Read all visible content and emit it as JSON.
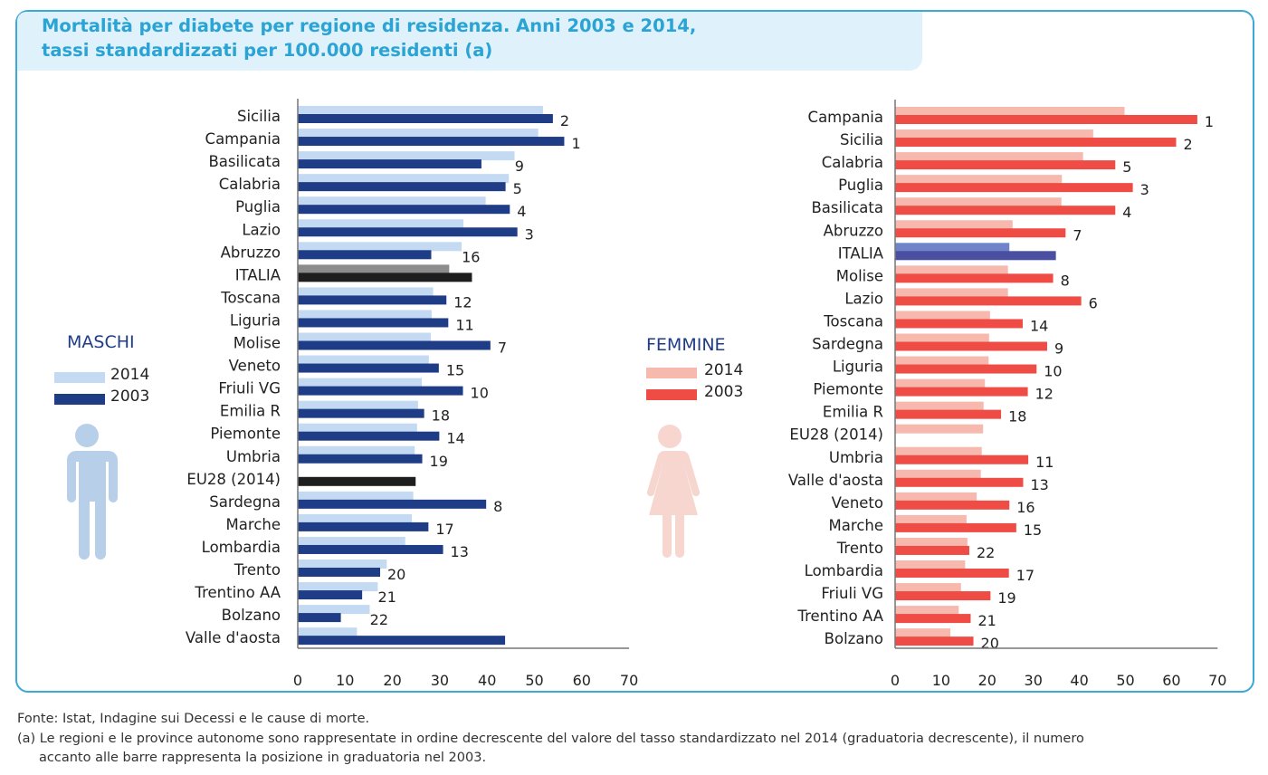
{
  "title": {
    "line1": "Mortalità per diabete per regione di residenza. Anni 2003 e 2014,",
    "line2": "tassi standardizzati per 100.000 residenti (a)"
  },
  "colors": {
    "frame": "#3da9d6",
    "title_text": "#2aa3d5",
    "title_bg": "#dff1fa",
    "male_2014": "#c3daf2",
    "male_2003": "#1f3c86",
    "male_italia_2014": "#8c8c8c",
    "male_italia_2003": "#1e1e1e",
    "female_2014": "#f7b8ae",
    "female_2003": "#ee4c45",
    "female_italia_2014": "#6f84c9",
    "female_italia_2003": "#4a4fa2",
    "male_icon": "#b8cfea",
    "female_icon": "#f7d6d0"
  },
  "legend_male": {
    "title": "MASCHI",
    "y2014": "2014",
    "y2003": "2003",
    "icon": "male-figure-icon"
  },
  "legend_female": {
    "title": "FEMMINE",
    "y2014": "2014",
    "y2003": "2003",
    "icon": "female-figure-icon"
  },
  "footnotes": {
    "source": "Fonte: Istat, Indagine sui Decessi e le cause di morte.",
    "note_a_line1": "(a) Le regioni e le province autonome sono rappresentate in ordine decrescente del valore del tasso standardizzato nel 2014 (graduatoria decrescente), il numero",
    "note_a_line2": "accanto alle barre rappresenta la posizione in graduatoria nel 2003."
  },
  "chart_data": [
    {
      "type": "bar",
      "orientation": "horizontal",
      "panel": "maschi",
      "xlim": [
        0,
        70
      ],
      "x_ticks": [
        "0",
        "10",
        "20",
        "30",
        "40",
        "50",
        "60",
        "70"
      ],
      "categories": [
        "Sicilia",
        "Campania",
        "Basilicata",
        "Calabria",
        "Puglia",
        "Lazio",
        "Abruzzo",
        "ITALIA",
        "Toscana",
        "Liguria",
        "Molise",
        "Veneto",
        "Friuli VG",
        "Emilia R",
        "Piemonte",
        "Umbria",
        "EU28 (2014)",
        "Sardegna",
        "Marche",
        "Lombardia",
        "Trento",
        "Trentino AA",
        "Bolzano",
        "Valle d'aosta"
      ],
      "series": [
        {
          "name": "2014",
          "values": [
            51.8,
            50.8,
            45.8,
            44.6,
            39.7,
            35.0,
            34.6,
            32.0,
            28.6,
            28.3,
            28.1,
            27.7,
            26.2,
            25.4,
            25.2,
            24.7,
            null,
            24.4,
            24.1,
            22.7,
            18.8,
            16.9,
            15.2,
            12.5
          ]
        },
        {
          "name": "2003",
          "values": [
            53.9,
            56.3,
            38.8,
            43.9,
            44.8,
            46.4,
            28.2,
            36.8,
            31.4,
            31.8,
            40.7,
            29.8,
            34.9,
            26.7,
            29.9,
            26.3,
            24.9,
            39.8,
            27.6,
            30.7,
            17.4,
            13.6,
            9.1,
            43.8
          ]
        }
      ],
      "ranks_2003": [
        "2",
        "1",
        "9",
        "5",
        "4",
        "3",
        "16",
        "",
        "12",
        "11",
        "7",
        "15",
        "10",
        "18",
        "14",
        "19",
        "",
        "8",
        "17",
        "13",
        "20",
        "21",
        "22",
        ""
      ]
    },
    {
      "type": "bar",
      "orientation": "horizontal",
      "panel": "femmine",
      "xlim": [
        0,
        70
      ],
      "x_ticks": [
        "0",
        "10",
        "20",
        "30",
        "40",
        "50",
        "60",
        "70"
      ],
      "categories": [
        "Campania",
        "Sicilia",
        "Calabria",
        "Puglia",
        "Basilicata",
        "Abruzzo",
        "ITALIA",
        "Molise",
        "Lazio",
        "Toscana",
        "Sardegna",
        "Liguria",
        "Piemonte",
        "Emilia R",
        "EU28 (2014)",
        "Umbria",
        "Valle d'aosta",
        "Veneto",
        "Marche",
        "Trento",
        "Lombardia",
        "Friuli VG",
        "Trentino AA",
        "Bolzano"
      ],
      "series": [
        {
          "name": "2014",
          "values": [
            49.8,
            43.0,
            40.8,
            36.2,
            36.1,
            25.5,
            24.8,
            24.5,
            24.5,
            20.6,
            20.4,
            20.3,
            19.5,
            19.2,
            19.1,
            18.8,
            18.6,
            17.7,
            15.5,
            15.7,
            15.2,
            14.3,
            13.8,
            12.0
          ]
        },
        {
          "name": "2003",
          "values": [
            65.6,
            61.0,
            47.8,
            51.6,
            47.8,
            37.0,
            34.9,
            34.3,
            40.4,
            27.7,
            33.0,
            30.7,
            28.8,
            23.0,
            null,
            28.9,
            27.8,
            24.8,
            26.3,
            16.1,
            24.7,
            20.7,
            16.4,
            17.0
          ]
        }
      ],
      "ranks_2003": [
        "1",
        "2",
        "5",
        "3",
        "4",
        "7",
        "",
        "8",
        "6",
        "14",
        "9",
        "10",
        "12",
        "18",
        "",
        "11",
        "13",
        "16",
        "15",
        "22",
        "17",
        "19",
        "21",
        "20"
      ]
    }
  ]
}
